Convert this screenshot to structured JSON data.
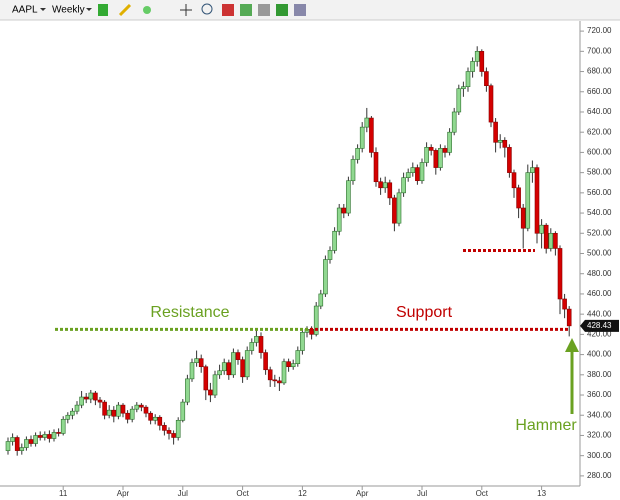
{
  "toolbar": {
    "symbol": "AAPL",
    "interval": "Weekly"
  },
  "chart_data": {
    "type": "candlestick",
    "categories": [
      null,
      null,
      null,
      null,
      null,
      null,
      null,
      null,
      null,
      null,
      null,
      null,
      "11",
      null,
      null,
      null,
      null,
      null,
      null,
      null,
      null,
      null,
      null,
      null,
      null,
      "Apr",
      null,
      null,
      null,
      null,
      null,
      null,
      null,
      null,
      null,
      null,
      null,
      null,
      "Jul",
      null,
      null,
      null,
      null,
      null,
      null,
      null,
      null,
      null,
      null,
      null,
      null,
      "Oct",
      null,
      null,
      null,
      null,
      null,
      null,
      null,
      null,
      null,
      null,
      null,
      null,
      "12",
      null,
      null,
      null,
      null,
      null,
      null,
      null,
      null,
      null,
      null,
      null,
      null,
      "Apr",
      null,
      null,
      null,
      null,
      null,
      null,
      null,
      null,
      null,
      null,
      null,
      null,
      "Jul",
      null,
      null,
      null,
      null,
      null,
      null,
      null,
      null,
      null,
      null,
      null,
      null,
      "Oct",
      null,
      null,
      null,
      null,
      null,
      null,
      null,
      null,
      null,
      null,
      null,
      null,
      "13",
      null,
      null,
      null,
      null,
      null,
      null
    ],
    "candles": [
      [
        305,
        318,
        301,
        314
      ],
      [
        314,
        322,
        310,
        318
      ],
      [
        318,
        320,
        300,
        305
      ],
      [
        305,
        312,
        301,
        308
      ],
      [
        308,
        319,
        305,
        316
      ],
      [
        316,
        320,
        309,
        312
      ],
      [
        312,
        323,
        309,
        320
      ],
      [
        320,
        324,
        315,
        318
      ],
      [
        318,
        324,
        315,
        321
      ],
      [
        321,
        325,
        313,
        317
      ],
      [
        317,
        326,
        314,
        323
      ],
      [
        323,
        327,
        319,
        322
      ],
      [
        322,
        339,
        320,
        336
      ],
      [
        336,
        343,
        332,
        340
      ],
      [
        340,
        347,
        336,
        344
      ],
      [
        344,
        354,
        341,
        350
      ],
      [
        350,
        364,
        347,
        358
      ],
      [
        358,
        362,
        352,
        356
      ],
      [
        356,
        365,
        352,
        362
      ],
      [
        362,
        364,
        350,
        355
      ],
      [
        355,
        358,
        347,
        353
      ],
      [
        353,
        355,
        336,
        340
      ],
      [
        340,
        350,
        337,
        345
      ],
      [
        345,
        349,
        333,
        339
      ],
      [
        339,
        353,
        336,
        350
      ],
      [
        350,
        352,
        338,
        342
      ],
      [
        342,
        345,
        332,
        336
      ],
      [
        336,
        349,
        333,
        346
      ],
      [
        346,
        353,
        343,
        350
      ],
      [
        350,
        352,
        344,
        348
      ],
      [
        348,
        350,
        338,
        342
      ],
      [
        342,
        344,
        331,
        335
      ],
      [
        335,
        341,
        331,
        338
      ],
      [
        338,
        340,
        325,
        330
      ],
      [
        330,
        333,
        320,
        325
      ],
      [
        325,
        328,
        316,
        322
      ],
      [
        322,
        325,
        311,
        318
      ],
      [
        318,
        338,
        315,
        335
      ],
      [
        335,
        356,
        333,
        353
      ],
      [
        353,
        380,
        350,
        376
      ],
      [
        376,
        396,
        373,
        392
      ],
      [
        392,
        404,
        388,
        396
      ],
      [
        396,
        400,
        382,
        388
      ],
      [
        388,
        390,
        355,
        365
      ],
      [
        365,
        372,
        353,
        360
      ],
      [
        360,
        384,
        357,
        380
      ],
      [
        380,
        390,
        376,
        384
      ],
      [
        384,
        396,
        380,
        392
      ],
      [
        392,
        395,
        375,
        380
      ],
      [
        380,
        406,
        377,
        402
      ],
      [
        402,
        405,
        390,
        395
      ],
      [
        395,
        398,
        372,
        378
      ],
      [
        378,
        408,
        375,
        404
      ],
      [
        404,
        416,
        400,
        412
      ],
      [
        412,
        426,
        408,
        418
      ],
      [
        418,
        422,
        396,
        402
      ],
      [
        402,
        405,
        380,
        385
      ],
      [
        385,
        388,
        368,
        375
      ],
      [
        375,
        380,
        368,
        374
      ],
      [
        374,
        378,
        364,
        372
      ],
      [
        372,
        396,
        370,
        393
      ],
      [
        393,
        396,
        383,
        388
      ],
      [
        388,
        395,
        385,
        391
      ],
      [
        391,
        408,
        388,
        404
      ],
      [
        404,
        425,
        400,
        422
      ],
      [
        422,
        428,
        417,
        425
      ],
      [
        425,
        428,
        415,
        420
      ],
      [
        420,
        452,
        418,
        448
      ],
      [
        448,
        464,
        445,
        460
      ],
      [
        460,
        498,
        457,
        494
      ],
      [
        494,
        507,
        490,
        503
      ],
      [
        503,
        526,
        500,
        522
      ],
      [
        522,
        549,
        518,
        545
      ],
      [
        545,
        549,
        535,
        540
      ],
      [
        540,
        576,
        537,
        572
      ],
      [
        572,
        597,
        568,
        593
      ],
      [
        593,
        608,
        589,
        604
      ],
      [
        604,
        630,
        600,
        625
      ],
      [
        625,
        644,
        620,
        634
      ],
      [
        634,
        636,
        595,
        600
      ],
      [
        600,
        605,
        566,
        571
      ],
      [
        571,
        575,
        558,
        565
      ],
      [
        565,
        576,
        560,
        570
      ],
      [
        570,
        573,
        548,
        555
      ],
      [
        555,
        558,
        522,
        530
      ],
      [
        530,
        564,
        527,
        560
      ],
      [
        560,
        580,
        556,
        575
      ],
      [
        575,
        584,
        571,
        580
      ],
      [
        580,
        590,
        576,
        585
      ],
      [
        585,
        588,
        568,
        572
      ],
      [
        572,
        594,
        569,
        590
      ],
      [
        590,
        610,
        586,
        605
      ],
      [
        605,
        608,
        597,
        602
      ],
      [
        602,
        604,
        578,
        585
      ],
      [
        585,
        608,
        582,
        604
      ],
      [
        604,
        607,
        595,
        600
      ],
      [
        600,
        624,
        597,
        620
      ],
      [
        620,
        644,
        617,
        640
      ],
      [
        640,
        667,
        637,
        663
      ],
      [
        663,
        670,
        655,
        665
      ],
      [
        665,
        684,
        660,
        680
      ],
      [
        680,
        694,
        674,
        690
      ],
      [
        690,
        705,
        685,
        700
      ],
      [
        700,
        702,
        675,
        680
      ],
      [
        680,
        684,
        660,
        666
      ],
      [
        666,
        668,
        625,
        630
      ],
      [
        630,
        634,
        600,
        610
      ],
      [
        610,
        618,
        604,
        612
      ],
      [
        612,
        615,
        595,
        605
      ],
      [
        605,
        608,
        575,
        580
      ],
      [
        580,
        583,
        555,
        565
      ],
      [
        565,
        568,
        535,
        545
      ],
      [
        545,
        549,
        505,
        525
      ],
      [
        525,
        588,
        522,
        580
      ],
      [
        580,
        592,
        570,
        585
      ],
      [
        585,
        588,
        510,
        520
      ],
      [
        520,
        534,
        505,
        528
      ],
      [
        528,
        530,
        500,
        505
      ],
      [
        505,
        525,
        502,
        520
      ],
      [
        520,
        522,
        498,
        505
      ],
      [
        505,
        508,
        440,
        455
      ],
      [
        455,
        460,
        436,
        445
      ],
      [
        445,
        448,
        418,
        428.43
      ]
    ],
    "up_color": "#90d890",
    "down_color": "#d40000",
    "ylim": [
      270,
      730
    ],
    "yticks": [
      {
        "value": 280,
        "label": "280.00"
      },
      {
        "value": 300,
        "label": "300.00"
      },
      {
        "value": 320,
        "label": "320.00"
      },
      {
        "value": 340,
        "label": "340.00"
      },
      {
        "value": 360,
        "label": "360.00"
      },
      {
        "value": 380,
        "label": "380.00"
      },
      {
        "value": 400,
        "label": "400.00"
      },
      {
        "value": 420,
        "label": "420.00"
      },
      {
        "value": 440,
        "label": "440.00"
      },
      {
        "value": 460,
        "label": "460.00"
      },
      {
        "value": 480,
        "label": "480.00"
      },
      {
        "value": 500,
        "label": "500.00"
      },
      {
        "value": 520,
        "label": "520.00"
      },
      {
        "value": 540,
        "label": "540.00"
      },
      {
        "value": 560,
        "label": "560.00"
      },
      {
        "value": 580,
        "label": "580.00"
      },
      {
        "value": 600,
        "label": "600.00"
      },
      {
        "value": 620,
        "label": "620.00"
      },
      {
        "value": 640,
        "label": "640.00"
      },
      {
        "value": 660,
        "label": "660.00"
      },
      {
        "value": 680,
        "label": "680.00"
      },
      {
        "value": 700,
        "label": "700.00"
      },
      {
        "value": 720,
        "label": "720.00"
      }
    ],
    "reference_lines": [
      {
        "value": 425,
        "color": "#6aa121"
      },
      {
        "value": 425,
        "color": "#c00000"
      },
      {
        "value": 503,
        "color": "#c00000"
      }
    ],
    "annotations": [
      {
        "text": "Resistance",
        "color": "#6aa121"
      },
      {
        "text": "Support",
        "color": "#c00000"
      },
      {
        "text": "Hammer",
        "color": "#6aa121"
      }
    ]
  }
}
